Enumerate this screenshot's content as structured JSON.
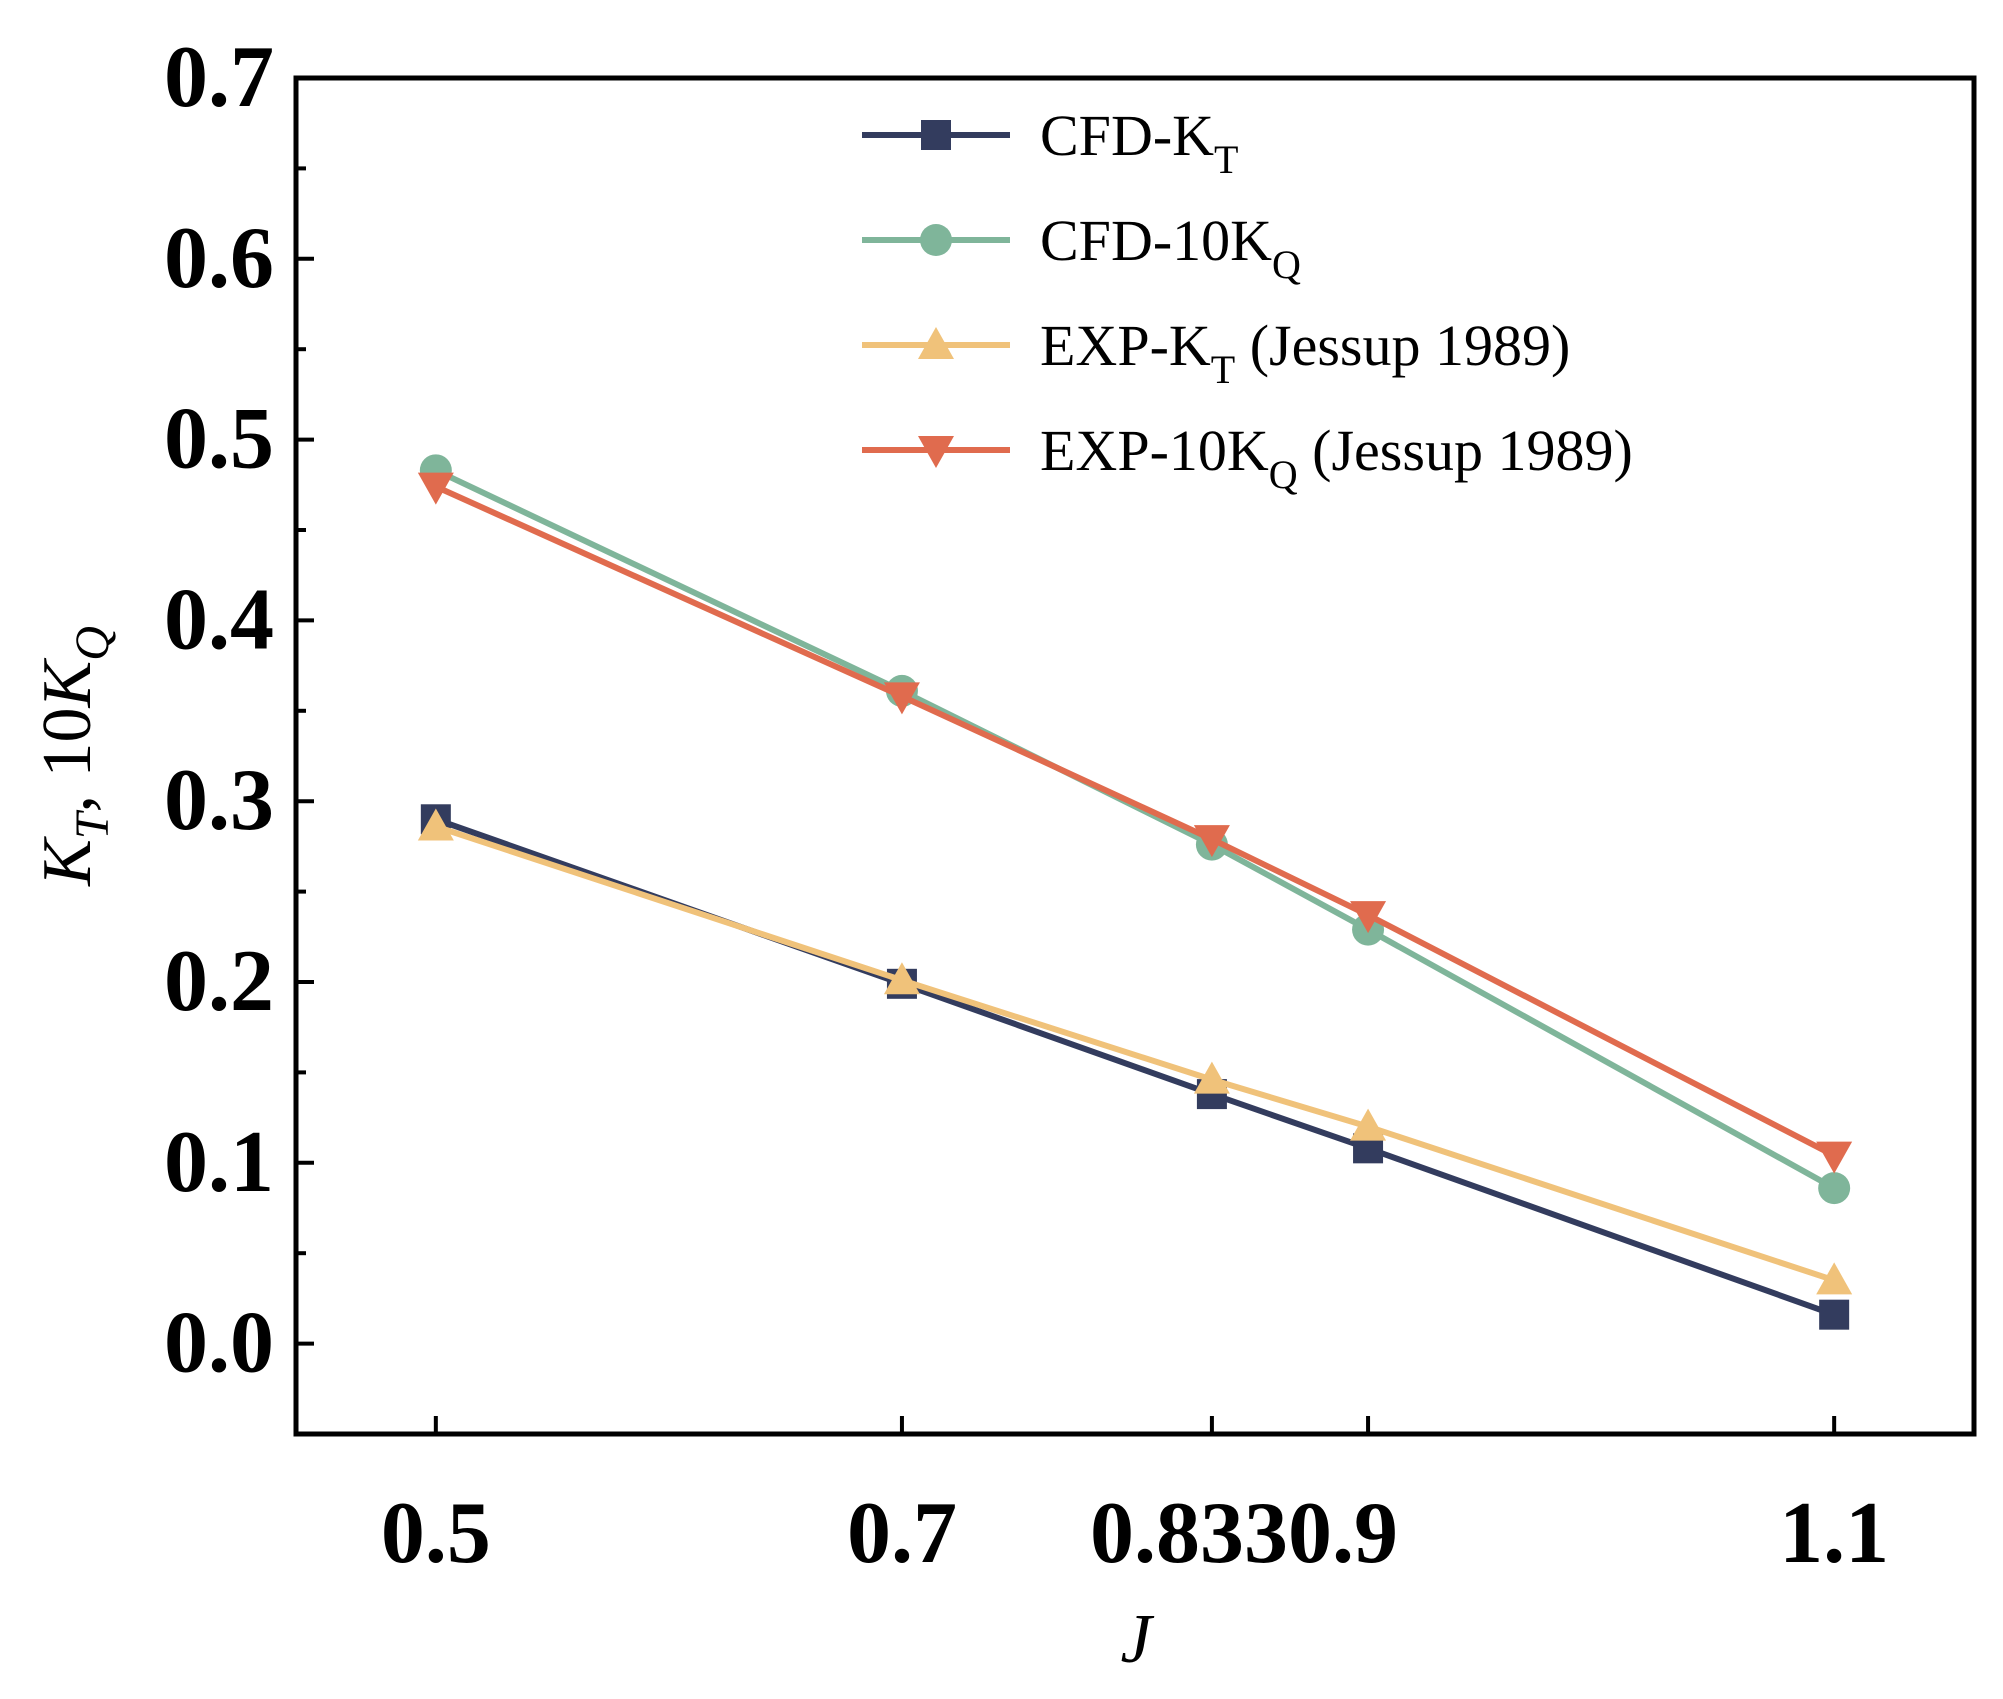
{
  "chart_data": {
    "type": "line",
    "title": "",
    "xlabel": "J",
    "ylabel": "K_T, 10K_Q",
    "xlim": [
      0.44,
      1.16
    ],
    "ylim": [
      -0.05,
      0.7
    ],
    "xticks": [
      0.5,
      0.7,
      0.833,
      0.9,
      1.1
    ],
    "xtick_labels": [
      "0.5",
      "0.7",
      "0.833",
      "0.9",
      "1.1"
    ],
    "yticks": [
      0.0,
      0.1,
      0.2,
      0.3,
      0.4,
      0.5,
      0.6,
      0.7
    ],
    "ytick_labels": [
      "0.0",
      "0.1",
      "0.2",
      "0.3",
      "0.4",
      "0.5",
      "0.6",
      "0.7"
    ],
    "legend_position": "top-center",
    "grid": false,
    "series": [
      {
        "name": "CFD-K_T",
        "label_main": "CFD-K",
        "label_sub": "T",
        "label_suffix": "",
        "color": "#333c5e",
        "marker": "square",
        "x": [
          0.5,
          0.7,
          0.833,
          0.9,
          1.1
        ],
        "y": [
          0.29,
          0.199,
          0.138,
          0.108,
          0.016
        ]
      },
      {
        "name": "CFD-10K_Q",
        "label_main": "CFD-10K",
        "label_sub": "Q",
        "label_suffix": "",
        "color": "#7fb59a",
        "marker": "circle",
        "x": [
          0.5,
          0.7,
          0.833,
          0.9,
          1.1
        ],
        "y": [
          0.483,
          0.361,
          0.276,
          0.229,
          0.086
        ]
      },
      {
        "name": "EXP-K_T (Jessup 1989)",
        "label_main": "EXP-K",
        "label_sub": "T",
        "label_suffix": " (Jessup 1989)",
        "color": "#f0c27a",
        "marker": "triangle-up",
        "x": [
          0.5,
          0.7,
          0.833,
          0.9,
          1.1
        ],
        "y": [
          0.286,
          0.201,
          0.146,
          0.12,
          0.035
        ]
      },
      {
        "name": "EXP-10K_Q (Jessup 1989)",
        "label_main": "EXP-10K",
        "label_sub": "Q",
        "label_suffix": " (Jessup 1989)",
        "color": "#e06b4e",
        "marker": "triangle-down",
        "x": [
          0.5,
          0.7,
          0.833,
          0.9,
          1.1
        ],
        "y": [
          0.474,
          0.358,
          0.279,
          0.237,
          0.104
        ]
      }
    ]
  }
}
